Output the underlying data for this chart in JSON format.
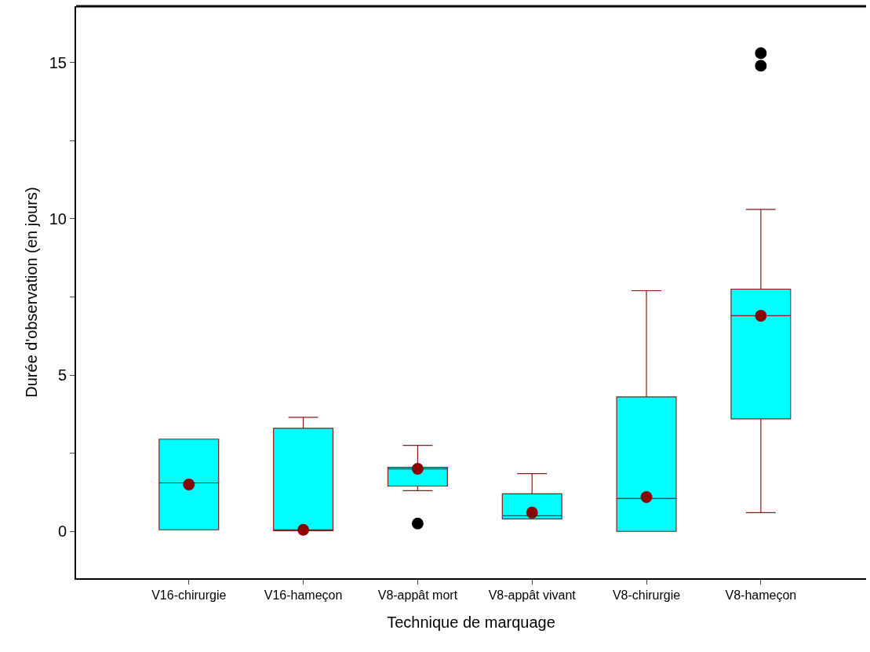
{
  "chart_data": {
    "type": "box",
    "xlabel": "Technique de marquage",
    "ylabel": "Durée d'observation (en jours)",
    "categories": [
      "V16-chirurgie",
      "V16-hameçon",
      "V8-appât mort",
      "V8-appât vivant",
      "V8-chirurgie",
      "V8-hameçon"
    ],
    "boxes": [
      {
        "low": 0.05,
        "q1": 0.05,
        "median": 1.55,
        "q3": 2.95,
        "high": 2.95,
        "mean": 1.5
      },
      {
        "low": 0.02,
        "q1": 0.02,
        "median": 0.05,
        "q3": 3.3,
        "high": 3.65,
        "mean": 0.05
      },
      {
        "low": 1.3,
        "q1": 1.45,
        "median": 2.0,
        "q3": 2.05,
        "high": 2.75,
        "mean": 2.0,
        "outliers": [
          0.25
        ]
      },
      {
        "low": 0.4,
        "q1": 0.4,
        "median": 0.5,
        "q3": 1.2,
        "high": 1.85,
        "mean": 0.6
      },
      {
        "low": 0.0,
        "q1": 0.0,
        "median": 1.05,
        "q3": 4.3,
        "high": 7.7,
        "mean": 1.1
      },
      {
        "low": 0.6,
        "q1": 3.6,
        "median": 6.9,
        "q3": 7.75,
        "high": 10.3,
        "mean": 6.9,
        "outliers": [
          14.9,
          15.3
        ]
      }
    ],
    "color": "#00ffff",
    "ylim": [
      -1.5,
      16.8
    ],
    "yticks": [
      0,
      {
        "value": 2.5,
        "label": null
      },
      5,
      {
        "value": 7.5,
        "label": null
      },
      10,
      {
        "value": 12.5,
        "label": null
      },
      15
    ],
    "legend": false
  }
}
